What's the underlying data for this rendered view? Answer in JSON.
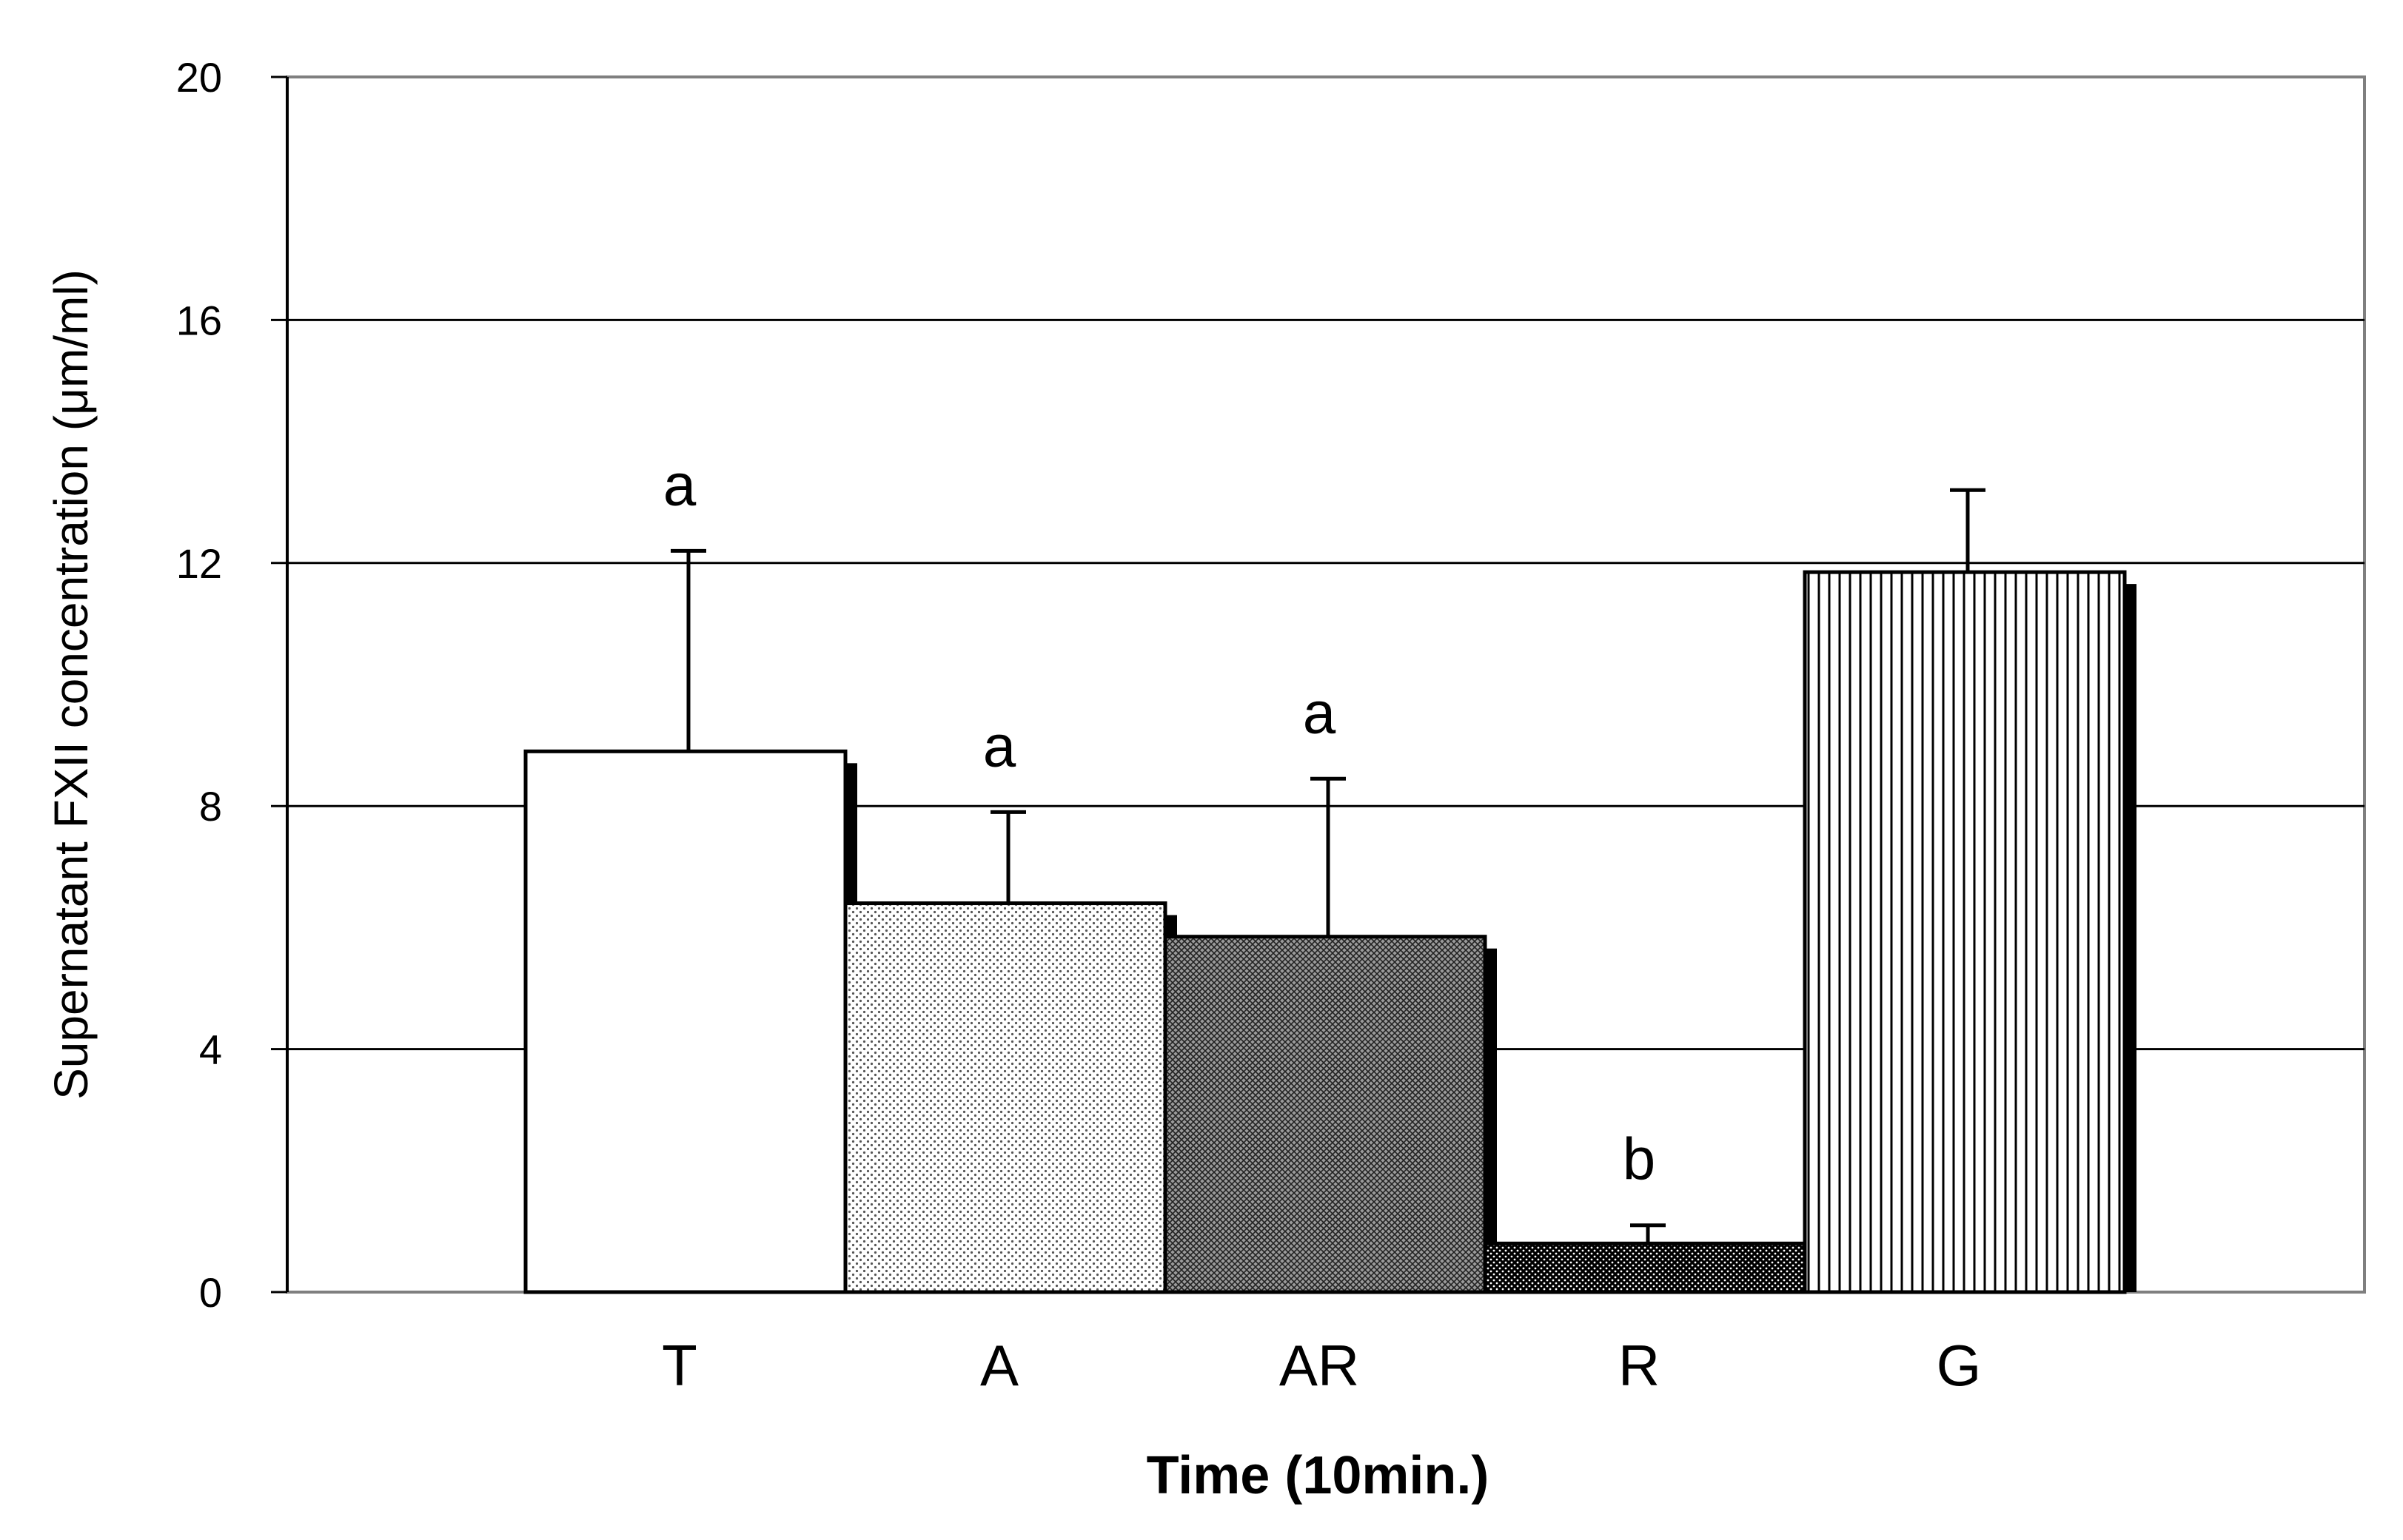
{
  "chart_data": {
    "type": "bar",
    "title": "",
    "xlabel": "Time (10min.)",
    "ylabel": "Supernatant FXII concentration (μm/ml)",
    "ylim": [
      0,
      20
    ],
    "yticks": [
      "0",
      "4",
      "8",
      "12",
      "16",
      "20"
    ],
    "grid": true,
    "categories": [
      "T",
      "A",
      "AR",
      "R",
      "G"
    ],
    "values": [
      8.9,
      6.4,
      5.85,
      0.8,
      11.85
    ],
    "error_upper": [
      3.3,
      1.5,
      2.6,
      0.3,
      1.35
    ],
    "significance": [
      "a",
      "a",
      "a",
      "b",
      ""
    ],
    "fills": [
      "white",
      "light-dots",
      "dark-crosshatch",
      "black-dots",
      "vertical-lines"
    ]
  }
}
